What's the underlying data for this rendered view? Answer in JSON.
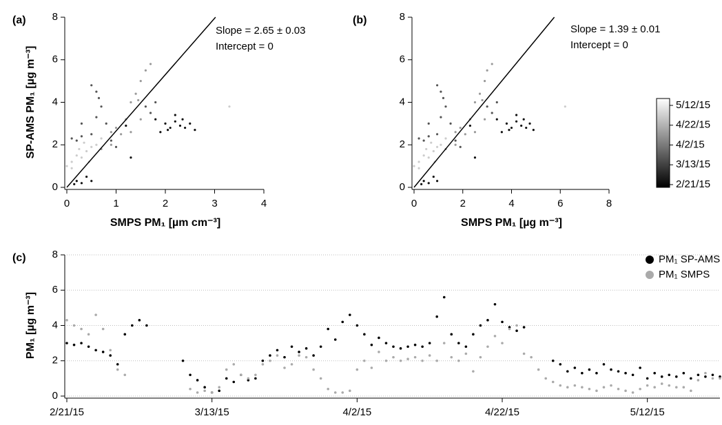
{
  "chart_data": [
    {
      "type": "scatter",
      "panel_label": "(a)",
      "x_label": "SMPS PM₁ [µm cm⁻³]",
      "y_label": "SP-AMS PM₁ [µg m⁻³]",
      "xlim": [
        0,
        4
      ],
      "xticks": [
        0,
        1,
        2,
        3,
        4
      ],
      "ylim": [
        0,
        8
      ],
      "yticks": [
        0,
        2,
        4,
        6,
        8
      ],
      "fit_slope": 2.65,
      "fit_intercept": 0,
      "annotations": [
        "Slope = 2.65 ± 0.03",
        "Intercept = 0"
      ],
      "series": [
        {
          "color": "#111111",
          "x": [
            2.0,
            2.1,
            2.2,
            2.3,
            2.4,
            2.5,
            2.6,
            1.9,
            2.2,
            1.8,
            2.35,
            2.05,
            0.2,
            0.3,
            0.4,
            0.5,
            0.15,
            1.2,
            1.3
          ],
          "y": [
            3.0,
            2.8,
            3.1,
            2.9,
            2.8,
            3.0,
            2.7,
            2.6,
            3.4,
            3.2,
            3.2,
            2.7,
            0.3,
            0.2,
            0.5,
            0.3,
            0.15,
            2.9,
            1.4
          ]
        },
        {
          "color": "#555555",
          "x": [
            0.1,
            0.2,
            0.3,
            0.5,
            0.6,
            0.7,
            0.6,
            0.5,
            0.65,
            1.0,
            0.9,
            1.6,
            1.7,
            1.8,
            0.8,
            0.3
          ],
          "y": [
            2.3,
            2.2,
            2.4,
            2.5,
            3.3,
            3.8,
            4.5,
            4.8,
            4.2,
            1.9,
            2.2,
            3.8,
            3.5,
            4.0,
            3.0,
            3.0
          ]
        },
        {
          "color": "#999999",
          "x": [
            1.0,
            1.2,
            1.3,
            1.4,
            1.5,
            1.6,
            1.7,
            1.1,
            0.9,
            1.3,
            1.5,
            0.7,
            1.45,
            0.9
          ],
          "y": [
            2.8,
            3.2,
            4.0,
            4.4,
            5.0,
            5.5,
            5.8,
            2.5,
            2.6,
            2.6,
            3.2,
            1.8,
            4.1,
            2.0
          ]
        },
        {
          "color": "#cccccc",
          "x": [
            0.0,
            0.1,
            0.2,
            0.3,
            0.4,
            0.5,
            0.6,
            0.1,
            0.25,
            0.45,
            0.7,
            0.35,
            3.3
          ],
          "y": [
            1.0,
            1.2,
            1.5,
            1.4,
            1.7,
            1.9,
            2.0,
            0.9,
            1.8,
            1.2,
            2.3,
            2.1,
            3.8
          ]
        }
      ]
    },
    {
      "type": "scatter",
      "panel_label": "(b)",
      "x_label": "SMPS PM₁ [µg m⁻³]",
      "xlim": [
        0,
        8
      ],
      "xticks": [
        0,
        2,
        4,
        6,
        8
      ],
      "ylim": [
        0,
        8
      ],
      "yticks": [
        0,
        2,
        4,
        6,
        8
      ],
      "fit_slope": 1.39,
      "fit_intercept": 0,
      "annotations": [
        "Slope = 1.39 ± 0.01",
        "Intercept = 0"
      ],
      "colorbar": {
        "labels": [
          "2/21/15",
          "3/13/15",
          "4/2/15",
          "4/22/15",
          "5/12/15"
        ],
        "colors": [
          "#000000",
          "#ffffff"
        ]
      },
      "series": [
        {
          "color": "#111111",
          "x": [
            3.8,
            4.0,
            4.2,
            4.4,
            4.6,
            4.75,
            4.9,
            3.6,
            4.2,
            3.4,
            4.5,
            3.9,
            0.4,
            0.6,
            0.8,
            0.95,
            0.3,
            2.3,
            2.5
          ],
          "y": [
            3.0,
            2.8,
            3.1,
            2.9,
            2.8,
            3.0,
            2.7,
            2.6,
            3.4,
            3.2,
            3.2,
            2.7,
            0.3,
            0.2,
            0.5,
            0.3,
            0.15,
            2.9,
            1.4
          ]
        },
        {
          "color": "#555555",
          "x": [
            0.2,
            0.4,
            0.6,
            0.95,
            1.1,
            1.3,
            1.1,
            0.95,
            1.2,
            1.9,
            1.7,
            3.0,
            3.2,
            3.4,
            1.5,
            0.6
          ],
          "y": [
            2.3,
            2.2,
            2.4,
            2.5,
            3.3,
            3.8,
            4.5,
            4.8,
            4.2,
            1.9,
            2.2,
            3.8,
            3.5,
            4.0,
            3.0,
            3.0
          ]
        },
        {
          "color": "#999999",
          "x": [
            1.9,
            2.3,
            2.5,
            2.7,
            2.9,
            3.0,
            3.2,
            2.1,
            1.7,
            2.5,
            2.9,
            1.3,
            2.8,
            1.7
          ],
          "y": [
            2.8,
            3.2,
            4.0,
            4.4,
            5.0,
            5.5,
            5.8,
            2.5,
            2.6,
            2.6,
            3.2,
            1.8,
            4.1,
            2.0
          ]
        },
        {
          "color": "#cccccc",
          "x": [
            0.0,
            0.2,
            0.4,
            0.6,
            0.8,
            0.95,
            1.1,
            0.2,
            0.5,
            0.85,
            1.3,
            0.7,
            6.2
          ],
          "y": [
            1.0,
            1.2,
            1.5,
            1.4,
            1.7,
            1.9,
            2.0,
            0.9,
            1.8,
            1.2,
            2.3,
            2.1,
            3.8
          ]
        }
      ]
    },
    {
      "type": "timeseries",
      "panel_label": "(c)",
      "y_label": "PM₁ [µg m⁻³]",
      "xlim": [
        "2/21/15",
        "5/22/15"
      ],
      "xticks": [
        "2/21/15",
        "3/13/15",
        "4/2/15",
        "4/22/15",
        "5/12/15"
      ],
      "ylim": [
        0,
        8
      ],
      "yticks": [
        0,
        2,
        4,
        6,
        8
      ],
      "grid": true,
      "x": [
        "2/21/15",
        "2/22/15",
        "2/23/15",
        "2/24/15",
        "2/25/15",
        "2/26/15",
        "2/27/15",
        "2/28/15",
        "3/1/15",
        "3/2/15",
        "3/3/15",
        "3/4/15",
        "3/5/15",
        "3/6/15",
        "3/7/15",
        "3/8/15",
        "3/9/15",
        "3/10/15",
        "3/11/15",
        "3/12/15",
        "3/13/15",
        "3/14/15",
        "3/15/15",
        "3/16/15",
        "3/17/15",
        "3/18/15",
        "3/19/15",
        "3/20/15",
        "3/21/15",
        "3/22/15",
        "3/23/15",
        "3/24/15",
        "3/25/15",
        "3/26/15",
        "3/27/15",
        "3/28/15",
        "3/29/15",
        "3/30/15",
        "3/31/15",
        "4/1/15",
        "4/2/15",
        "4/3/15",
        "4/4/15",
        "4/5/15",
        "4/6/15",
        "4/7/15",
        "4/8/15",
        "4/9/15",
        "4/10/15",
        "4/11/15",
        "4/12/15",
        "4/13/15",
        "4/14/15",
        "4/15/15",
        "4/16/15",
        "4/17/15",
        "4/18/15",
        "4/19/15",
        "4/20/15",
        "4/21/15",
        "4/22/15",
        "4/23/15",
        "4/24/15",
        "4/25/15",
        "4/26/15",
        "4/27/15",
        "4/28/15",
        "4/29/15",
        "4/30/15",
        "5/1/15",
        "5/2/15",
        "5/3/15",
        "5/4/15",
        "5/5/15",
        "5/6/15",
        "5/7/15",
        "5/8/15",
        "5/9/15",
        "5/10/15",
        "5/11/15",
        "5/12/15",
        "5/13/15",
        "5/14/15",
        "5/15/15",
        "5/16/15",
        "5/17/15",
        "5/18/15",
        "5/19/15",
        "5/20/15",
        "5/21/15",
        "5/22/15"
      ],
      "series": [
        {
          "name": "PM₁ SP-AMS",
          "color": "#000000",
          "values": [
            3.0,
            2.9,
            3.0,
            2.8,
            2.6,
            2.5,
            2.3,
            1.8,
            3.5,
            4.0,
            4.3,
            4.0,
            null,
            null,
            null,
            null,
            2.0,
            1.2,
            0.9,
            0.5,
            0.2,
            0.3,
            1.0,
            0.8,
            1.2,
            0.9,
            1.0,
            2.0,
            2.3,
            2.6,
            2.2,
            2.8,
            2.5,
            2.7,
            2.3,
            2.8,
            3.8,
            3.2,
            4.2,
            4.6,
            4.0,
            3.5,
            2.9,
            3.3,
            3.0,
            2.8,
            2.7,
            2.8,
            2.9,
            2.8,
            3.0,
            4.5,
            5.6,
            3.5,
            3.0,
            2.8,
            3.5,
            4.0,
            4.3,
            5.2,
            4.2,
            3.9,
            3.7,
            3.9,
            null,
            null,
            null,
            2.0,
            1.8,
            1.4,
            1.6,
            1.3,
            1.5,
            1.3,
            1.8,
            1.5,
            1.4,
            1.3,
            1.2,
            1.6,
            1.0,
            1.3,
            1.1,
            1.2,
            1.1,
            1.3,
            1.0,
            1.2,
            1.1,
            1.2,
            1.1
          ]
        },
        {
          "name": "PM₁ SMPS",
          "color": "#aaaaaa",
          "values": [
            4.3,
            4.0,
            3.8,
            3.5,
            4.6,
            3.8,
            2.6,
            1.5,
            1.2,
            null,
            null,
            null,
            null,
            null,
            null,
            null,
            null,
            0.4,
            0.2,
            0.3,
            0.2,
            0.5,
            1.5,
            1.8,
            1.2,
            1.0,
            1.2,
            1.8,
            2.0,
            2.3,
            1.6,
            1.8,
            2.3,
            2.2,
            1.5,
            1.0,
            0.4,
            0.2,
            0.2,
            0.3,
            1.5,
            2.0,
            1.6,
            2.5,
            2.0,
            2.2,
            2.0,
            2.1,
            2.2,
            2.0,
            2.3,
            2.0,
            3.0,
            2.2,
            2.0,
            2.4,
            1.4,
            2.2,
            2.8,
            3.4,
            3.0,
            3.8,
            4.0,
            2.4,
            2.2,
            1.5,
            1.0,
            0.8,
            0.6,
            0.5,
            0.6,
            0.5,
            0.4,
            0.3,
            0.5,
            0.6,
            0.4,
            0.3,
            0.2,
            0.4,
            0.6,
            0.5,
            0.7,
            0.6,
            0.5,
            0.5,
            0.3,
            0.9,
            1.3,
            1.0,
            1.0
          ]
        }
      ]
    }
  ]
}
